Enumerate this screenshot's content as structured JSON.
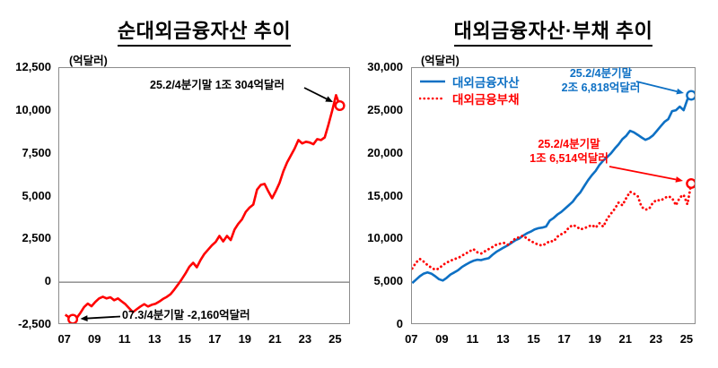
{
  "chart_data": [
    {
      "type": "line",
      "title": "순대외금융자산 추이",
      "unit_label": "(억달러)",
      "xlabel": "",
      "ylabel": "억달러",
      "ylim": [
        -2500,
        12500
      ],
      "grid": false,
      "x_start": 2007.0,
      "x_step": 0.25,
      "x_tick_labels": [
        "07",
        "09",
        "11",
        "13",
        "15",
        "17",
        "19",
        "21",
        "23",
        "25"
      ],
      "y_tick_labels": [
        "12,500",
        "10,000",
        "7,500",
        "5,000",
        "2,500",
        "0",
        "-2,500"
      ],
      "series": [
        {
          "name": "순대외금융자산",
          "color": "#ff0000",
          "style": "solid",
          "values": [
            -1900,
            -2050,
            -2160,
            -2100,
            -1800,
            -1450,
            -1250,
            -1400,
            -1150,
            -950,
            -850,
            -950,
            -880,
            -1050,
            -950,
            -1120,
            -1280,
            -1520,
            -1750,
            -1580,
            -1420,
            -1280,
            -1420,
            -1320,
            -1260,
            -1130,
            -980,
            -860,
            -700,
            -430,
            -130,
            180,
            520,
            900,
            1130,
            870,
            1300,
            1650,
            1900,
            2150,
            2350,
            2700,
            2380,
            2700,
            2460,
            3070,
            3400,
            3660,
            4100,
            4350,
            4530,
            5400,
            5680,
            5735,
            5300,
            4900,
            5320,
            5800,
            6470,
            6990,
            7400,
            7800,
            8300,
            8100,
            8200,
            8150,
            8050,
            8350,
            8300,
            8450,
            9200,
            10030,
            10915,
            10304
          ]
        }
      ],
      "markers": [
        {
          "x": 2025.25,
          "y": 10304,
          "color": "#ff0000"
        },
        {
          "x": 2007.5,
          "y": -2160,
          "color": "#ff0000"
        }
      ],
      "annotations": [
        {
          "lines": [
            "25.2/4분기말 1조 304억달러"
          ],
          "color": "#000000",
          "target": {
            "x": 2025.25,
            "y": 10304
          }
        },
        {
          "lines": [
            "07.3/4분기말 -2,160억달러"
          ],
          "color": "#000000",
          "target": {
            "x": 2007.5,
            "y": -2160
          }
        }
      ]
    },
    {
      "type": "line",
      "title": "대외금융자산·부채 추이",
      "unit_label": "(억달러)",
      "xlabel": "",
      "ylabel": "억달러",
      "ylim": [
        0,
        30000
      ],
      "grid": false,
      "show_legend": true,
      "legend_position": "top-left",
      "x_start": 2007.0,
      "x_step": 0.25,
      "x_tick_labels": [
        "07",
        "09",
        "11",
        "13",
        "15",
        "17",
        "19",
        "21",
        "23",
        "25"
      ],
      "y_tick_labels": [
        "30,000",
        "25,000",
        "20,000",
        "15,000",
        "10,000",
        "5,000",
        "0"
      ],
      "series": [
        {
          "name": "대외금융자산",
          "color": "#0d70c4",
          "style": "solid",
          "values": [
            4900,
            5300,
            5700,
            6000,
            6140,
            6000,
            5700,
            5350,
            5200,
            5500,
            5900,
            6140,
            6400,
            6770,
            7050,
            7300,
            7500,
            7620,
            7580,
            7700,
            7800,
            8200,
            8540,
            8800,
            9060,
            9300,
            9600,
            9900,
            10100,
            10430,
            10700,
            10900,
            11160,
            11300,
            11370,
            11500,
            12200,
            12500,
            12900,
            13200,
            13600,
            14000,
            14400,
            15000,
            15500,
            16200,
            16900,
            17500,
            18000,
            18700,
            19200,
            19600,
            20050,
            20600,
            21100,
            21700,
            22100,
            22670,
            22500,
            22200,
            21900,
            21620,
            21800,
            22140,
            22670,
            23190,
            23720,
            24030,
            24970,
            25080,
            25490,
            25080,
            26330,
            26818
          ]
        },
        {
          "name": "대외금융부채",
          "color": "#ff0000",
          "style": "dotted",
          "values": [
            6600,
            7300,
            7710,
            7400,
            7000,
            6700,
            6450,
            6600,
            7000,
            7290,
            7500,
            7700,
            7810,
            8100,
            8340,
            8600,
            8860,
            8500,
            8340,
            8600,
            8860,
            9100,
            9380,
            9500,
            9590,
            9380,
            9700,
            10110,
            10250,
            10430,
            10100,
            9800,
            9590,
            9380,
            9280,
            9500,
            9800,
            9750,
            10320,
            10600,
            10850,
            11370,
            11680,
            11500,
            11160,
            11300,
            11480,
            11680,
            11370,
            11890,
            11480,
            12410,
            13000,
            13570,
            14300,
            13980,
            14820,
            15550,
            15340,
            15030,
            13800,
            13460,
            13570,
            14300,
            14610,
            14510,
            14820,
            15030,
            14820,
            13980,
            14900,
            15200,
            14090,
            16514
          ]
        }
      ],
      "markers": [
        {
          "x": 2025.25,
          "y": 26818,
          "color": "#0d70c4"
        },
        {
          "x": 2025.25,
          "y": 16514,
          "color": "#ff0000"
        }
      ],
      "annotations": [
        {
          "lines": [
            "25.2/4분기말",
            "2조 6,818억달러"
          ],
          "color": "#0d70c4",
          "target": {
            "x": 2025.25,
            "y": 26818
          }
        },
        {
          "lines": [
            "25.2/4분기말",
            "1조 6,514억달러"
          ],
          "color": "#ff0000",
          "target": {
            "x": 2025.25,
            "y": 16514
          }
        }
      ]
    }
  ]
}
